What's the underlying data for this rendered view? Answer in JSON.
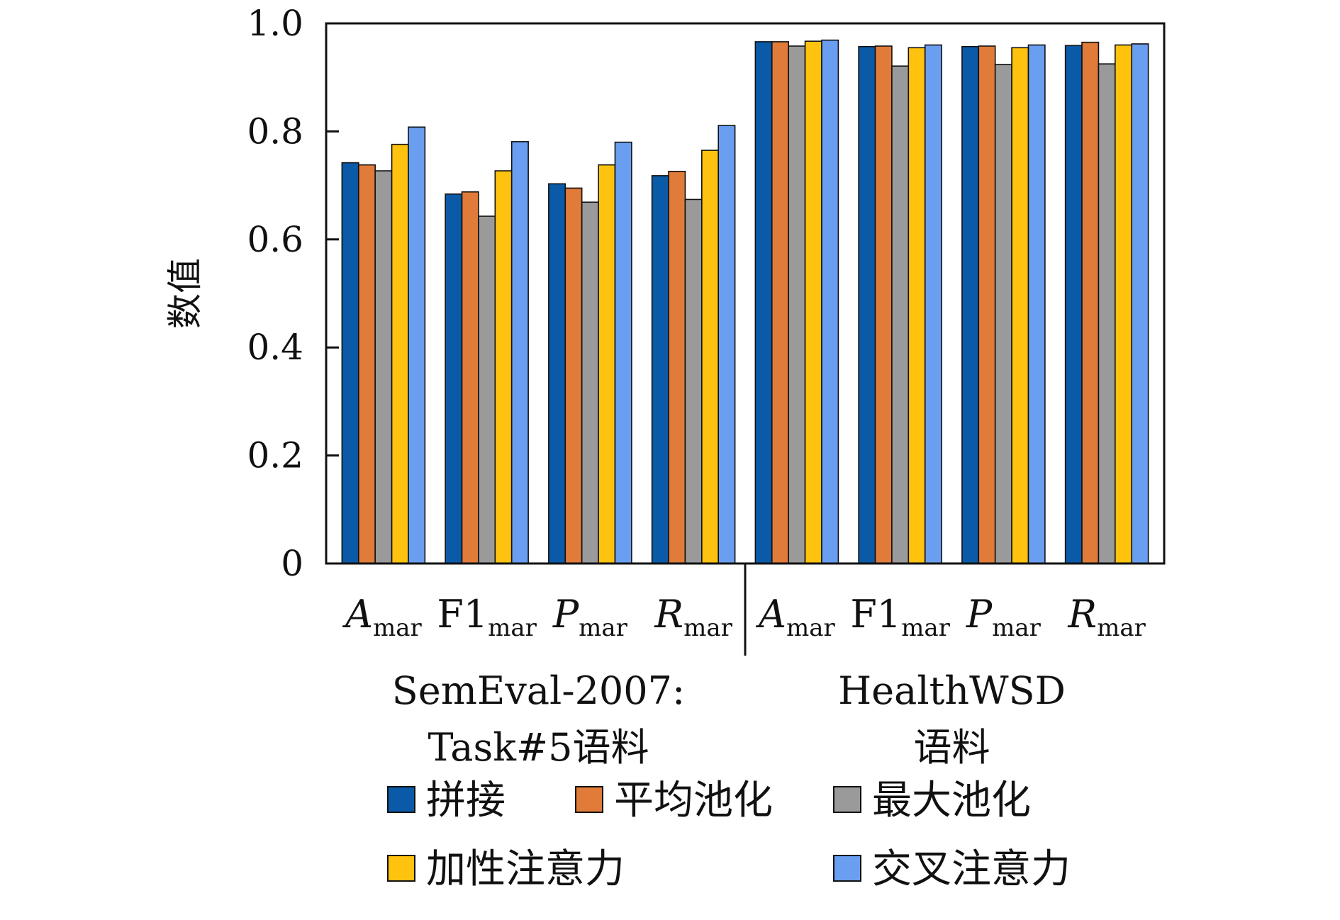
{
  "chart_data": {
    "type": "bar",
    "ylabel": "数值",
    "ylim": [
      0,
      1.0
    ],
    "yticks": [
      {
        "value": 0,
        "label": "0"
      },
      {
        "value": 0.2,
        "label": "0.2"
      },
      {
        "value": 0.4,
        "label": "0.4"
      },
      {
        "value": 0.6,
        "label": "0.6"
      },
      {
        "value": 0.8,
        "label": "0.8"
      },
      {
        "value": 1.0,
        "label": "1.0"
      }
    ],
    "categories": [
      {
        "main": "A",
        "sub": "mar",
        "italic": true
      },
      {
        "main": "F1",
        "sub": "mar",
        "italic": false
      },
      {
        "main": "P",
        "sub": "mar",
        "italic": true
      },
      {
        "main": "R",
        "sub": "mar",
        "italic": true
      },
      {
        "main": "A",
        "sub": "mar",
        "italic": true
      },
      {
        "main": "F1",
        "sub": "mar",
        "italic": false
      },
      {
        "main": "P",
        "sub": "mar",
        "italic": true
      },
      {
        "main": "R",
        "sub": "mar",
        "italic": true
      }
    ],
    "groups": [
      {
        "lines": [
          "SemEval-2007:",
          "Task#5语料"
        ],
        "categories": [
          0,
          3
        ]
      },
      {
        "lines": [
          "HealthWSD",
          "语料"
        ],
        "categories": [
          4,
          7
        ]
      }
    ],
    "series": [
      {
        "name": "拼接",
        "color": "#0a5aa8",
        "values": [
          0.742,
          0.684,
          0.703,
          0.718,
          0.966,
          0.957,
          0.957,
          0.959
        ]
      },
      {
        "name": "平均池化",
        "color": "#e07b39",
        "values": [
          0.738,
          0.688,
          0.695,
          0.726,
          0.966,
          0.958,
          0.958,
          0.965
        ]
      },
      {
        "name": "最大池化",
        "color": "#9a9a9a",
        "values": [
          0.727,
          0.643,
          0.669,
          0.674,
          0.958,
          0.921,
          0.924,
          0.925
        ]
      },
      {
        "name": "加性注意力",
        "color": "#ffc20e",
        "values": [
          0.776,
          0.727,
          0.738,
          0.765,
          0.967,
          0.955,
          0.955,
          0.96
        ]
      },
      {
        "name": "交叉注意力",
        "color": "#6a9ef0",
        "values": [
          0.808,
          0.781,
          0.78,
          0.811,
          0.969,
          0.96,
          0.96,
          0.962
        ]
      }
    ],
    "legend_placement": "bottom",
    "grid": false
  }
}
